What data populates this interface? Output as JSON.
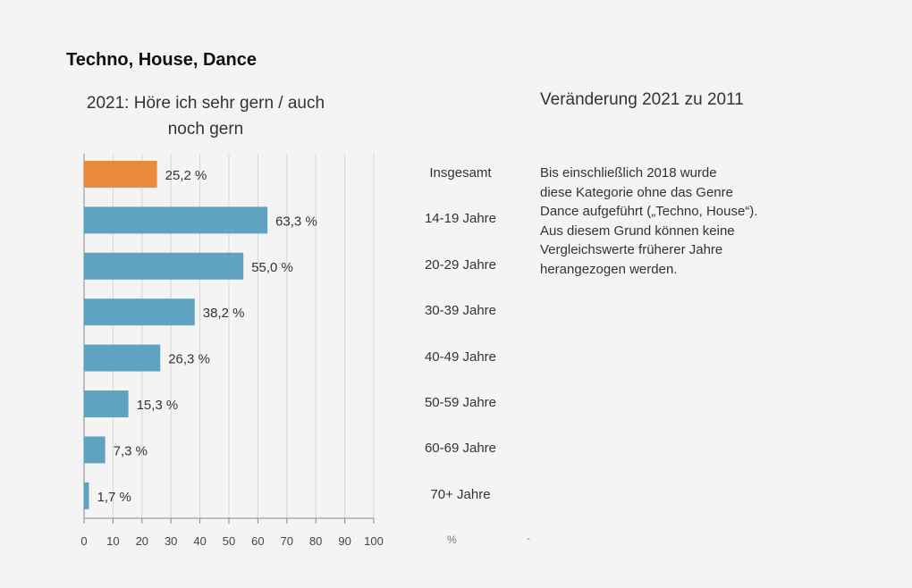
{
  "chart_data": {
    "type": "bar",
    "orientation": "horizontal",
    "title": "Techno, House, Dance",
    "subtitle": "2021: Höre ich sehr gern / auch noch gern",
    "categories": [
      "Insgesamt",
      "14-19 Jahre",
      "20-29 Jahre",
      "30-39 Jahre",
      "40-49 Jahre",
      "50-59 Jahre",
      "60-69 Jahre",
      "70+ Jahre"
    ],
    "values": [
      25.2,
      63.3,
      55.0,
      38.2,
      26.3,
      15.3,
      7.3,
      1.7
    ],
    "data_labels": [
      "25,2 %",
      "63,3 %",
      "55,0 %",
      "38,2 %",
      "26,3 %",
      "15,3 %",
      "7,3 %",
      "1,7 %"
    ],
    "xlim": [
      0,
      100
    ],
    "xticks": [
      "0",
      "10",
      "20",
      "30",
      "40",
      "50",
      "60",
      "70",
      "80",
      "90",
      "100"
    ],
    "grid": true,
    "colors": {
      "highlight": "#e98a3c",
      "bar": "#5fa3c0",
      "grid": "#d6d6d6",
      "axis": "#888888"
    },
    "unit_label": "%",
    "change_title": "Veränderung 2021 zu 2011",
    "change_value": "-",
    "note": "Bis einschließlich 2018 wurde\ndiese Kategorie ohne das Genre\nDance aufgeführt („Techno, House“).\nAus diesem Grund können keine\nVergleichswerte früherer Jahre\nherangezogen werden."
  }
}
